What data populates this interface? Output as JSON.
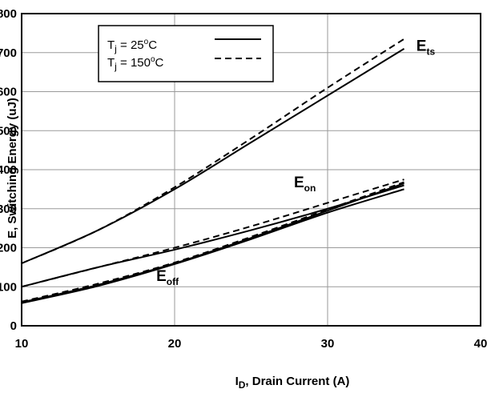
{
  "chart_data": {
    "type": "line",
    "xlabel": {
      "main": "I",
      "sub": "D",
      "rest": ", Drain Current (A)"
    },
    "ylabel": "E, Switching Energy (uJ)",
    "xlim": [
      10,
      40
    ],
    "ylim": [
      0,
      800
    ],
    "xticks": [
      10,
      20,
      30,
      40
    ],
    "yticks": [
      0,
      100,
      200,
      300,
      400,
      500,
      600,
      700,
      800
    ],
    "grid": true,
    "legend": {
      "placement": "top-left",
      "entries": [
        {
          "pre": "T",
          "sub": "j",
          "mid": " = 25",
          "sup": "o",
          "post": "C",
          "style": "solid"
        },
        {
          "pre": "T",
          "sub": "j",
          "mid": " = 150",
          "sup": "o",
          "post": "C",
          "style": "dashed"
        }
      ]
    },
    "annotations": [
      {
        "main": "E",
        "sub": "ts",
        "x": 35.8,
        "y": 705
      },
      {
        "main": "E",
        "sub": "on",
        "x": 27.8,
        "y": 355
      },
      {
        "main": "E",
        "sub": "off",
        "x": 18.8,
        "y": 115
      }
    ],
    "x": [
      10,
      15,
      20,
      25,
      30,
      35
    ],
    "series": [
      {
        "name": "Ets 25C",
        "style": "solid",
        "values": [
          160,
          245,
          350,
          470,
          590,
          710
        ]
      },
      {
        "name": "Ets 150C",
        "style": "dashed",
        "values": [
          160,
          245,
          355,
          480,
          610,
          735
        ]
      },
      {
        "name": "Eon 25C",
        "style": "solid",
        "values": [
          100,
          150,
          195,
          245,
          300,
          360
        ]
      },
      {
        "name": "Eon 150C",
        "style": "dashed",
        "values": [
          100,
          150,
          200,
          255,
          315,
          375
        ]
      },
      {
        "name": "Eoff 25C",
        "style": "solid",
        "values": [
          60,
          105,
          160,
          225,
          295,
          365
        ]
      },
      {
        "name": "Eoff 25C b",
        "style": "solid",
        "values": [
          58,
          102,
          158,
          222,
          290,
          350
        ]
      },
      {
        "name": "Eoff 150C",
        "style": "dashed",
        "values": [
          62,
          108,
          162,
          228,
          298,
          368
        ]
      }
    ]
  }
}
